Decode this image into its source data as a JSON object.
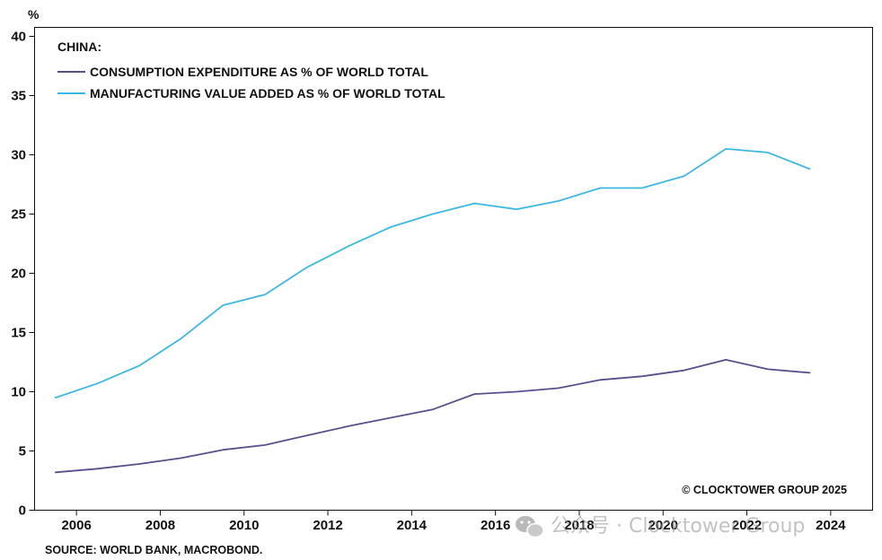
{
  "chart_data": {
    "type": "line",
    "unit_label": "%",
    "title": "CHINA:",
    "x": [
      2005.5,
      2006.5,
      2007.5,
      2008.5,
      2009.5,
      2010.5,
      2011.5,
      2012.5,
      2013.5,
      2014.5,
      2015.5,
      2016.5,
      2017.5,
      2018.5,
      2019.5,
      2020.5,
      2021.5,
      2022.5,
      2023.5
    ],
    "xlim": [
      2005,
      2025
    ],
    "x_ticks": [
      "2006",
      "2008",
      "2010",
      "2012",
      "2014",
      "2016",
      "2018",
      "2020",
      "2022",
      "2024"
    ],
    "ylim": [
      0,
      40
    ],
    "y_ticks": [
      "0",
      "5",
      "10",
      "15",
      "20",
      "25",
      "30",
      "35",
      "40"
    ],
    "grid": false,
    "legend_position": "top-left",
    "series": [
      {
        "name": "CONSUMPTION EXPENDITURE AS % OF WORLD TOTAL",
        "color": "#5b4e8c",
        "values": [
          3.2,
          3.5,
          3.9,
          4.4,
          5.1,
          5.5,
          6.3,
          7.1,
          7.8,
          8.5,
          9.8,
          10.0,
          10.3,
          11.0,
          11.3,
          11.8,
          12.7,
          11.9,
          11.6
        ]
      },
      {
        "name": "MANUFACTURING VALUE ADDED AS % OF WORLD TOTAL",
        "color": "#3db7e4",
        "values": [
          9.5,
          10.7,
          12.2,
          14.5,
          17.3,
          18.2,
          20.5,
          22.3,
          23.9,
          25.0,
          25.9,
          25.4,
          26.1,
          27.2,
          27.2,
          28.2,
          30.5,
          30.2,
          28.8
        ]
      }
    ],
    "copyright": "© CLOCKTOWER GROUP 2025",
    "source": "SOURCE: WORLD BANK, MACROBOND."
  },
  "watermark": {
    "icon": "wechat-icon",
    "text": "公众号 · Clocktower Group"
  }
}
